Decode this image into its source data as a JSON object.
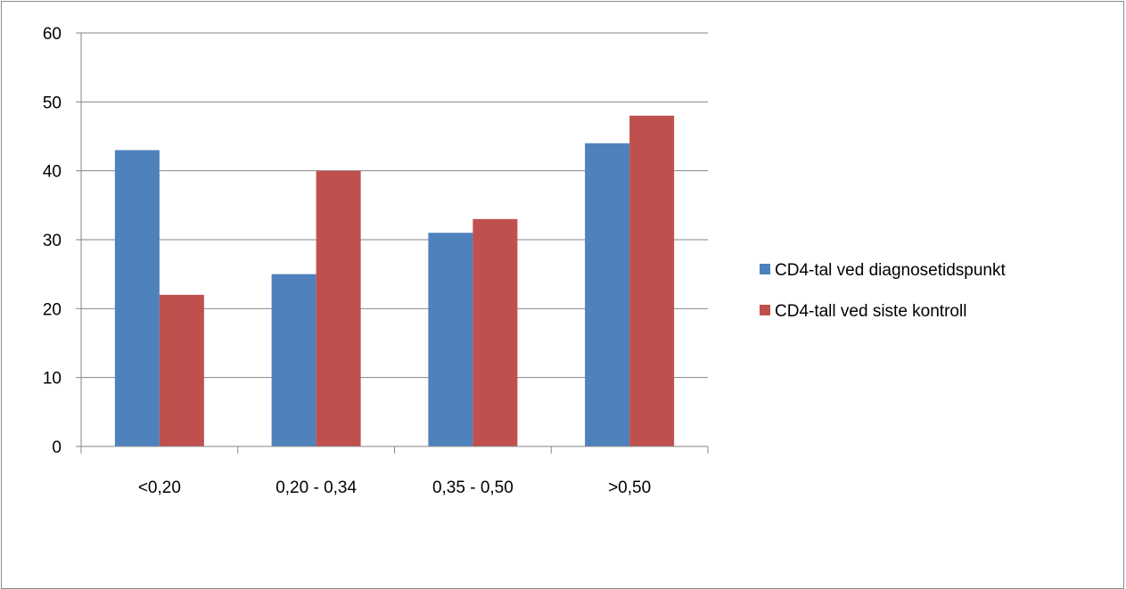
{
  "chart_data": {
    "type": "bar",
    "title": "",
    "xlabel": "",
    "ylabel": "",
    "categories": [
      "<0,20",
      "0,20 - 0,34",
      "0,35 - 0,50",
      ">0,50"
    ],
    "series": [
      {
        "name": "CD4-tal ved diagnosetidspunkt",
        "color": "#4f81bd",
        "values": [
          43,
          25,
          31,
          44
        ]
      },
      {
        "name": "CD4-tall ved siste kontroll",
        "color": "#c0504d",
        "values": [
          22,
          40,
          33,
          48
        ]
      }
    ],
    "ylim": [
      0,
      60
    ],
    "yticks": [
      0,
      10,
      20,
      30,
      40,
      50,
      60
    ],
    "grid": true,
    "legend_position": "right"
  }
}
